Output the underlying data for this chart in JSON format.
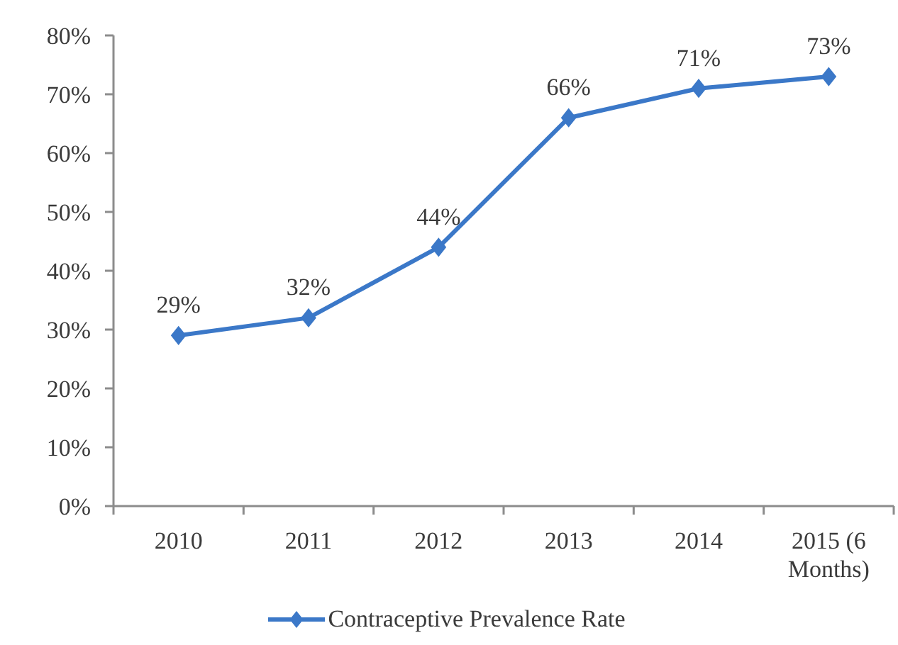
{
  "chart_data": {
    "type": "line",
    "categories": [
      "2010",
      "2011",
      "2012",
      "2013",
      "2014",
      "2015 (6 Months)"
    ],
    "series": [
      {
        "name": "Contraceptive Prevalence Rate",
        "color": "#3b78c8",
        "values": [
          29,
          32,
          44,
          66,
          71,
          73
        ],
        "value_labels": [
          "29%",
          "32%",
          "44%",
          "66%",
          "71%",
          "73%"
        ]
      }
    ],
    "ylim": [
      0,
      80
    ],
    "yticks": [
      {
        "value": 0,
        "label": "0%"
      },
      {
        "value": 10,
        "label": "10%"
      },
      {
        "value": 20,
        "label": "20%"
      },
      {
        "value": 30,
        "label": "30%"
      },
      {
        "value": 40,
        "label": "40%"
      },
      {
        "value": 50,
        "label": "50%"
      },
      {
        "value": 60,
        "label": "60%"
      },
      {
        "value": 70,
        "label": "70%"
      },
      {
        "value": 80,
        "label": "80%"
      }
    ],
    "marker": "diamond",
    "line_style": "solid",
    "legend": "bottom"
  }
}
